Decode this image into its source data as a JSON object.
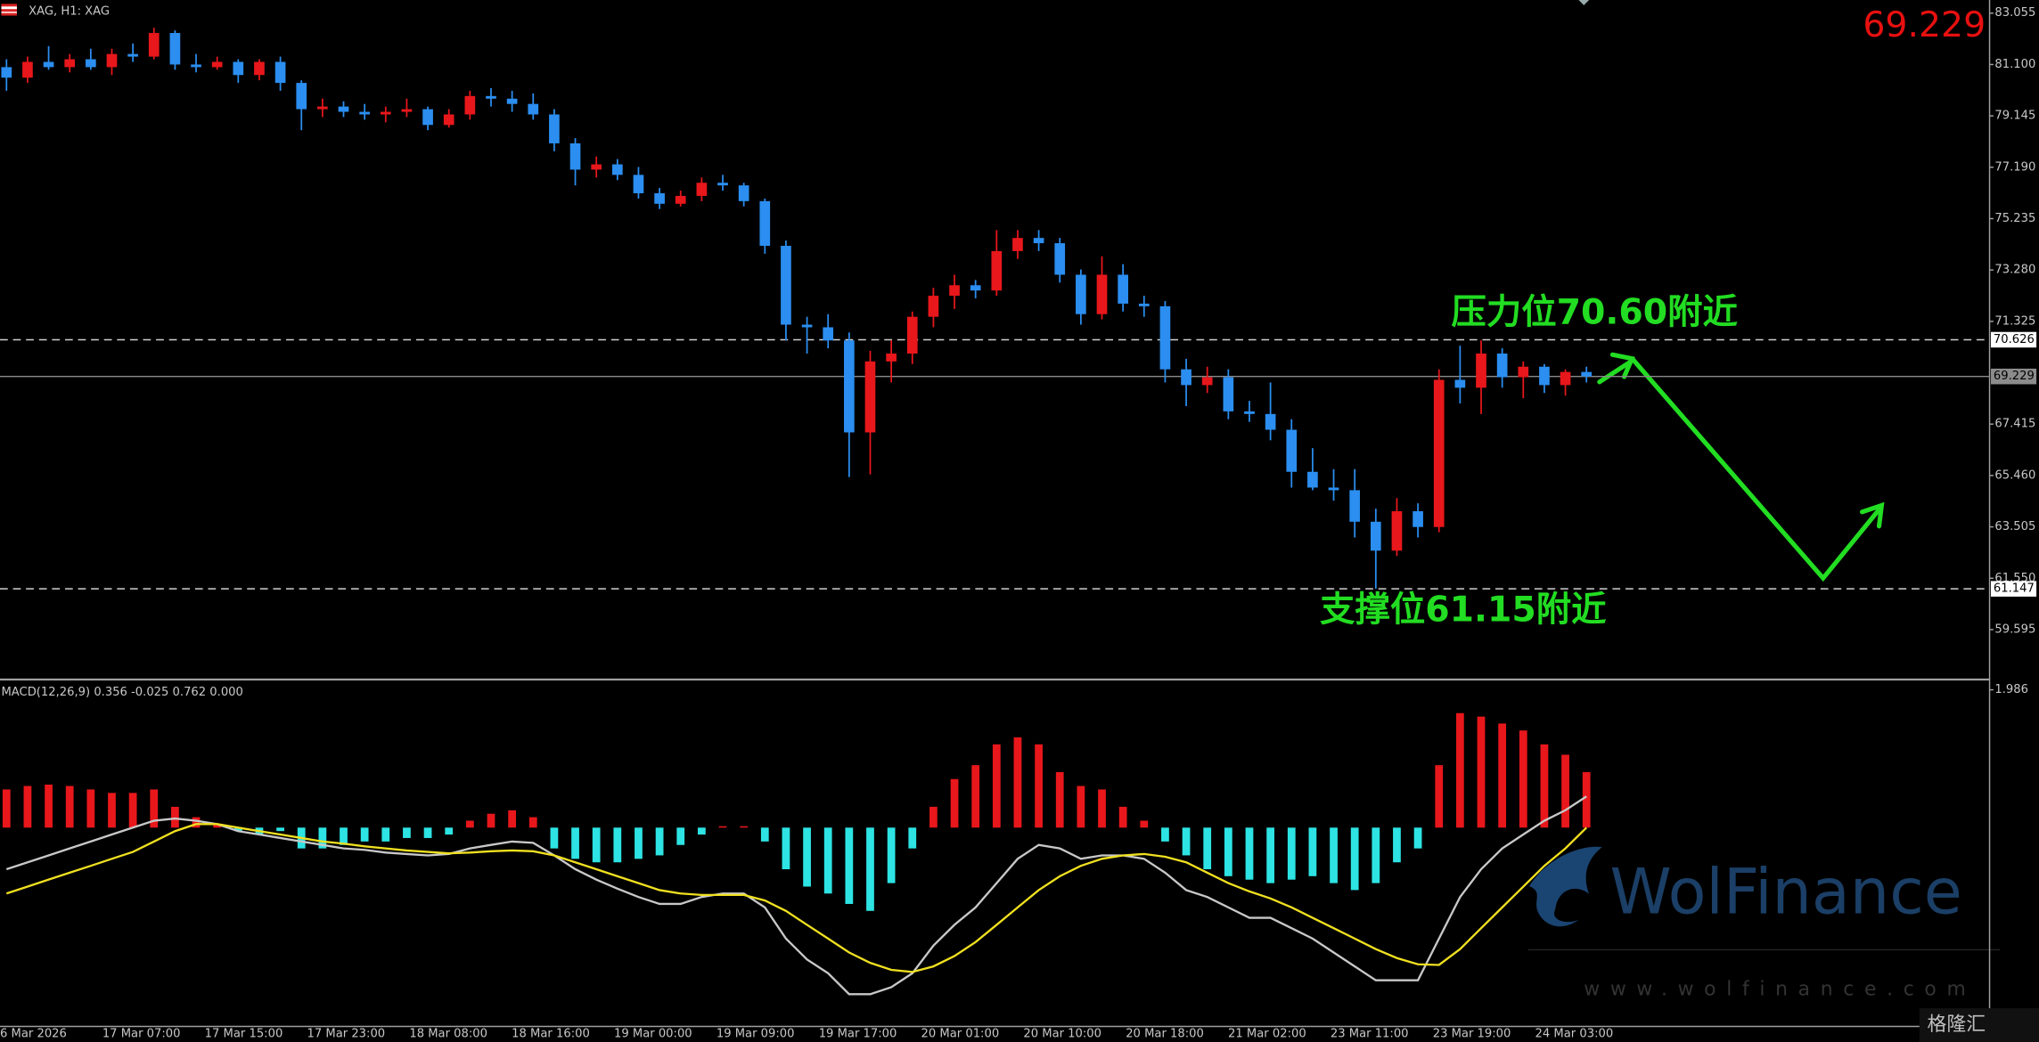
{
  "header": {
    "symbol": "XAG, H1: XAG"
  },
  "chart_data": [
    {
      "type": "candlestick",
      "open": [
        81.0,
        80.6,
        81.2,
        81.0,
        81.3,
        81.0,
        81.5,
        81.4,
        82.3,
        81.1,
        81.0,
        81.2,
        80.7,
        81.2,
        80.4,
        79.4,
        79.5,
        79.3,
        79.2,
        79.3,
        79.4,
        78.8,
        79.2,
        79.9,
        79.8,
        79.6,
        79.2,
        78.1,
        77.1,
        77.3,
        76.9,
        76.2,
        75.8,
        76.1,
        76.6,
        76.5,
        75.9,
        74.2,
        71.2,
        71.1,
        70.6,
        67.1,
        69.8,
        70.1,
        71.5,
        72.3,
        72.7,
        72.5,
        74.0,
        74.5,
        74.3,
        73.1,
        71.6,
        73.1,
        72.0,
        71.9,
        69.5,
        68.9,
        69.2,
        67.9,
        67.8,
        67.2,
        65.6,
        65.0,
        64.9,
        63.7,
        62.6,
        64.1,
        63.5,
        69.1,
        68.8,
        70.1,
        69.2,
        69.6,
        68.9,
        69.4
      ],
      "high": [
        81.3,
        81.4,
        81.8,
        81.5,
        81.7,
        81.7,
        81.9,
        82.5,
        82.4,
        81.5,
        81.4,
        81.3,
        81.3,
        81.4,
        80.5,
        79.8,
        79.7,
        79.6,
        79.5,
        79.8,
        79.5,
        79.4,
        80.1,
        80.2,
        80.1,
        80.0,
        79.4,
        78.3,
        77.6,
        77.5,
        77.2,
        76.4,
        76.3,
        76.8,
        76.9,
        76.6,
        76.0,
        74.4,
        71.5,
        71.6,
        70.9,
        70.2,
        70.6,
        71.7,
        72.6,
        73.1,
        72.9,
        74.8,
        74.8,
        74.8,
        74.5,
        73.3,
        73.8,
        73.5,
        72.3,
        72.1,
        69.9,
        69.6,
        69.5,
        68.3,
        69.0,
        67.6,
        66.5,
        65.7,
        65.7,
        64.2,
        64.6,
        64.4,
        69.5,
        70.4,
        70.6,
        70.3,
        69.8,
        69.7,
        69.5,
        69.6
      ],
      "low": [
        80.1,
        80.4,
        80.9,
        80.8,
        80.9,
        80.7,
        81.2,
        81.3,
        80.9,
        80.8,
        80.9,
        80.4,
        80.5,
        80.1,
        78.6,
        79.1,
        79.1,
        79.0,
        78.9,
        79.1,
        78.6,
        78.7,
        79.0,
        79.5,
        79.3,
        79.0,
        77.8,
        76.5,
        76.8,
        76.7,
        76.0,
        75.6,
        75.7,
        75.9,
        76.3,
        75.7,
        73.9,
        70.6,
        70.1,
        70.3,
        65.4,
        65.5,
        69.0,
        69.7,
        71.1,
        71.8,
        72.2,
        72.3,
        73.7,
        74.0,
        72.8,
        71.2,
        71.4,
        71.7,
        71.5,
        69.0,
        68.1,
        68.6,
        67.6,
        67.5,
        66.8,
        65.0,
        64.9,
        64.5,
        63.1,
        61.15,
        62.4,
        63.1,
        63.3,
        68.2,
        67.8,
        68.8,
        68.4,
        68.6,
        68.5,
        69.0
      ],
      "close": [
        80.6,
        81.2,
        81.0,
        81.3,
        81.0,
        81.5,
        81.4,
        82.3,
        81.1,
        81.0,
        81.2,
        80.7,
        81.2,
        80.4,
        79.4,
        79.5,
        79.3,
        79.2,
        79.3,
        79.4,
        78.8,
        79.2,
        79.9,
        79.8,
        79.6,
        79.2,
        78.1,
        77.1,
        77.3,
        76.9,
        76.2,
        75.8,
        76.1,
        76.6,
        76.5,
        75.9,
        74.2,
        71.2,
        71.1,
        70.6,
        67.1,
        69.8,
        70.1,
        71.5,
        72.3,
        72.7,
        72.5,
        74.0,
        74.5,
        74.3,
        73.1,
        71.6,
        73.1,
        72.0,
        71.9,
        69.5,
        68.9,
        69.2,
        67.9,
        67.8,
        67.2,
        65.6,
        65.0,
        64.9,
        63.7,
        62.6,
        64.1,
        63.5,
        69.1,
        68.8,
        70.1,
        69.2,
        69.6,
        68.9,
        69.4,
        69.229
      ],
      "up_color": "#e8171b",
      "down_color": "#2b8ef0",
      "ylim": [
        57.745,
        83.555
      ],
      "yticks": [
        83.055,
        {
          "value": 81.1,
          "label": "81.100"
        },
        79.145,
        {
          "value": 77.19,
          "label": "77.190"
        },
        75.235,
        {
          "value": 73.28,
          "label": "73.280"
        },
        71.325,
        67.415,
        {
          "value": 65.46,
          "label": "65.460"
        },
        63.505,
        {
          "value": 61.55,
          "label": "61.550"
        },
        59.595
      ],
      "levels": [
        {
          "value": 70.626,
          "style": "dashed",
          "box_color": "#ffffff"
        },
        {
          "value": 69.229,
          "style": "solid",
          "box_color": "#8c8c8c"
        },
        {
          "value": 61.147,
          "style": "dashed",
          "box_color": "#ffffff"
        }
      ],
      "last_price_color": "#e81010",
      "annotations": [
        "压力位70.60附近",
        "支撑位61.15附近"
      ],
      "annotation_color": "#22dd22",
      "time_labels": [
        "6 Mar 2026",
        "17 Mar 07:00",
        "17 Mar 15:00",
        "17 Mar 23:00",
        "18 Mar 08:00",
        "18 Mar 16:00",
        "19 Mar 00:00",
        "19 Mar 09:00",
        "19 Mar 17:00",
        "20 Mar 01:00",
        "20 Mar 10:00",
        "20 Mar 18:00",
        "21 Mar 02:00",
        "23 Mar 11:00",
        "23 Mar 19:00",
        "24 Mar 03:00"
      ]
    },
    {
      "type": "macd",
      "title": "MACD(12,26,9) 0.356 -0.025 0.762 0.000",
      "histogram": [
        0.55,
        0.6,
        0.62,
        0.6,
        0.55,
        0.5,
        0.5,
        0.55,
        0.3,
        0.15,
        0.05,
        -0.05,
        -0.1,
        -0.05,
        -0.3,
        -0.3,
        -0.25,
        -0.2,
        -0.2,
        -0.15,
        -0.15,
        -0.1,
        0.1,
        0.2,
        0.25,
        0.15,
        -0.3,
        -0.45,
        -0.5,
        -0.5,
        -0.45,
        -0.4,
        -0.25,
        -0.1,
        0.02,
        0.02,
        -0.2,
        -0.6,
        -0.85,
        -0.95,
        -1.1,
        -1.2,
        -0.8,
        -0.3,
        0.3,
        0.7,
        0.9,
        1.2,
        1.3,
        1.2,
        0.8,
        0.6,
        0.55,
        0.3,
        0.1,
        -0.2,
        -0.4,
        -0.6,
        -0.7,
        -0.75,
        -0.8,
        -0.75,
        -0.7,
        -0.8,
        -0.9,
        -0.8,
        -0.5,
        -0.3,
        0.9,
        1.65,
        1.6,
        1.5,
        1.4,
        1.2,
        1.05,
        0.8
      ],
      "positive_color": "#e8171b",
      "negative_color": "#2de3e3",
      "series": [
        {
          "color": "#c8c8c8",
          "values": [
            -0.6,
            -0.5,
            -0.4,
            -0.3,
            -0.2,
            -0.1,
            0.0,
            0.1,
            0.13,
            0.1,
            0.05,
            -0.05,
            -0.1,
            -0.15,
            -0.2,
            -0.25,
            -0.3,
            -0.32,
            -0.36,
            -0.38,
            -0.4,
            -0.38,
            -0.3,
            -0.25,
            -0.2,
            -0.22,
            -0.4,
            -0.6,
            -0.75,
            -0.88,
            -1.0,
            -1.1,
            -1.1,
            -1.0,
            -0.95,
            -0.95,
            -1.15,
            -1.6,
            -1.9,
            -2.1,
            -2.4,
            -2.4,
            -2.3,
            -2.1,
            -1.7,
            -1.4,
            -1.15,
            -0.8,
            -0.45,
            -0.25,
            -0.3,
            -0.45,
            -0.4,
            -0.4,
            -0.45,
            -0.65,
            -0.9,
            -1.0,
            -1.15,
            -1.3,
            -1.3,
            -1.45,
            -1.6,
            -1.8,
            -2.0,
            -2.2,
            -2.2,
            -2.2,
            -1.6,
            -1.0,
            -0.6,
            -0.3,
            -0.1,
            0.1,
            0.25,
            0.45
          ]
        },
        {
          "color": "#f0e020",
          "values": [
            -0.95,
            -0.85,
            -0.75,
            -0.65,
            -0.55,
            -0.45,
            -0.35,
            -0.2,
            -0.05,
            0.05,
            0.05,
            0.0,
            -0.05,
            -0.1,
            -0.15,
            -0.2,
            -0.23,
            -0.27,
            -0.3,
            -0.33,
            -0.35,
            -0.37,
            -0.36,
            -0.34,
            -0.33,
            -0.34,
            -0.4,
            -0.5,
            -0.6,
            -0.7,
            -0.8,
            -0.9,
            -0.95,
            -0.97,
            -0.97,
            -0.97,
            -1.05,
            -1.2,
            -1.4,
            -1.6,
            -1.8,
            -1.95,
            -2.05,
            -2.08,
            -2.0,
            -1.85,
            -1.65,
            -1.4,
            -1.15,
            -0.9,
            -0.7,
            -0.55,
            -0.45,
            -0.4,
            -0.38,
            -0.42,
            -0.5,
            -0.65,
            -0.8,
            -0.92,
            -1.02,
            -1.15,
            -1.3,
            -1.45,
            -1.6,
            -1.75,
            -1.88,
            -1.97,
            -1.98,
            -1.75,
            -1.45,
            -1.15,
            -0.85,
            -0.55,
            -0.3,
            0.0
          ]
        }
      ],
      "ylim": [
        -2.865,
        2.097
      ],
      "yticks": [
        1.986
      ]
    }
  ],
  "watermark": {
    "brand": "WolFinance",
    "url": "www.wolfinance.com",
    "logo": "格隆汇"
  }
}
